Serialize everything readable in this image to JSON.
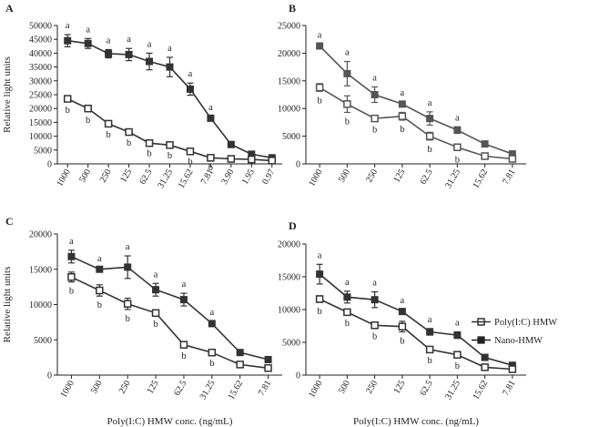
{
  "figure": {
    "legend": [
      {
        "name": "Poly(I:C) HMW",
        "marker": "open-square"
      },
      {
        "name": "Nano-HMW",
        "marker": "filled-square"
      }
    ]
  },
  "colors": {
    "axis": "#222222",
    "series": "#333333",
    "panelB": "#555555"
  },
  "chart_data": [
    {
      "panel": "A",
      "type": "line",
      "ylabel": "Relative light units",
      "xlabel": "",
      "ylim": [
        0,
        50000
      ],
      "yticks": [
        "0",
        "5000",
        "10000",
        "15000",
        "20000",
        "25000",
        "30000",
        "35000",
        "40000",
        "45000",
        "50000"
      ],
      "categories": [
        "1000",
        "500",
        "250",
        "125",
        "62.5",
        "31.25",
        "15.62",
        "7.81",
        "3.90",
        "1.95",
        "0.97"
      ],
      "series": [
        {
          "name": "Nano-HMW",
          "marker": "filled",
          "values": [
            44500,
            43500,
            39800,
            39500,
            37000,
            35000,
            27000,
            16500,
            7000,
            3500,
            2200
          ],
          "errors": [
            2200,
            1800,
            1500,
            2200,
            3000,
            3500,
            2200,
            600,
            500,
            400,
            300
          ],
          "annotations": [
            "a",
            "a",
            "a",
            "a",
            "a",
            "a",
            "a",
            "a",
            "",
            "",
            ""
          ]
        },
        {
          "name": "Poly(I:C) HMW",
          "marker": "open",
          "values": [
            23500,
            20000,
            14500,
            11500,
            7500,
            6800,
            4500,
            2200,
            1800,
            1600,
            1200
          ],
          "errors": [
            800,
            900,
            700,
            600,
            500,
            500,
            400,
            200,
            200,
            200,
            100
          ],
          "annotations": [
            "b",
            "b",
            "b",
            "b",
            "b",
            "b",
            "b",
            "b",
            "",
            "",
            ""
          ]
        }
      ]
    },
    {
      "panel": "B",
      "type": "line",
      "ylabel": "",
      "xlabel": "",
      "ylim": [
        0,
        25000
      ],
      "yticks": [
        "0",
        "5000",
        "10000",
        "15000",
        "20000",
        "25000"
      ],
      "categories": [
        "1000",
        "500",
        "250",
        "125",
        "62.5",
        "31.25",
        "15.62",
        "7.81"
      ],
      "series": [
        {
          "name": "Nano-HMW",
          "marker": "filled",
          "values": [
            21300,
            16300,
            12500,
            10800,
            8200,
            6100,
            3600,
            1800
          ],
          "errors": [
            300,
            2200,
            1400,
            400,
            1200,
            600,
            400,
            300
          ],
          "annotations": [
            "a",
            "a",
            "a",
            "a",
            "a",
            "a",
            "",
            ""
          ]
        },
        {
          "name": "Poly(I:C) HMW",
          "marker": "open",
          "values": [
            13800,
            10800,
            8200,
            8600,
            5000,
            3000,
            1400,
            900
          ],
          "errors": [
            700,
            1500,
            400,
            700,
            700,
            600,
            200,
            100
          ],
          "annotations": [
            "b",
            "b",
            "b",
            "b",
            "b",
            "b",
            "",
            ""
          ]
        }
      ]
    },
    {
      "panel": "C",
      "type": "line",
      "ylabel": "Relative light units",
      "xlabel": "Poly(I:C) HMW conc. (ng/mL)",
      "ylim": [
        0,
        20000
      ],
      "yticks": [
        "0",
        "5000",
        "10000",
        "15000",
        "20000"
      ],
      "categories": [
        "1000",
        "500",
        "250",
        "125",
        "62.5",
        "31.25",
        "15.62",
        "7.81"
      ],
      "series": [
        {
          "name": "Nano-HMW",
          "marker": "filled",
          "values": [
            16800,
            15000,
            15300,
            12100,
            10700,
            7300,
            3200,
            2200
          ],
          "errors": [
            900,
            200,
            1600,
            900,
            900,
            300,
            200,
            200
          ],
          "annotations": [
            "a",
            "a",
            "a",
            "a",
            "a",
            "a",
            "",
            ""
          ]
        },
        {
          "name": "Poly(I:C) HMW",
          "marker": "open",
          "values": [
            13900,
            12000,
            10100,
            8800,
            4300,
            3200,
            1500,
            1000
          ],
          "errors": [
            700,
            800,
            800,
            300,
            300,
            200,
            200,
            200
          ],
          "annotations": [
            "b",
            "b",
            "b",
            "b",
            "b",
            "b",
            "",
            ""
          ]
        }
      ]
    },
    {
      "panel": "D",
      "type": "line",
      "ylabel": "",
      "xlabel": "Poly(I:C) HMW conc. (ng/mL)",
      "ylim": [
        0,
        20000
      ],
      "yticks": [
        "0",
        "5000",
        "10000",
        "15000",
        "20000"
      ],
      "categories": [
        "1000",
        "500",
        "250",
        "125",
        "62.5",
        "31.25",
        "15.62",
        "7.81"
      ],
      "series": [
        {
          "name": "Nano-HMW",
          "marker": "filled",
          "values": [
            15400,
            11900,
            11500,
            9700,
            6600,
            6100,
            2700,
            1500
          ],
          "errors": [
            1500,
            900,
            1200,
            300,
            500,
            500,
            200,
            200
          ],
          "annotations": [
            "a",
            "a",
            "a",
            "a",
            "a",
            "a",
            "",
            ""
          ]
        },
        {
          "name": "Poly(I:C) HMW",
          "marker": "open",
          "values": [
            11600,
            9600,
            7600,
            7400,
            3900,
            3100,
            1200,
            900
          ],
          "errors": [
            500,
            300,
            300,
            800,
            300,
            300,
            200,
            100
          ],
          "annotations": [
            "b",
            "b",
            "b",
            "b",
            "b",
            "b",
            "",
            ""
          ]
        }
      ]
    }
  ]
}
